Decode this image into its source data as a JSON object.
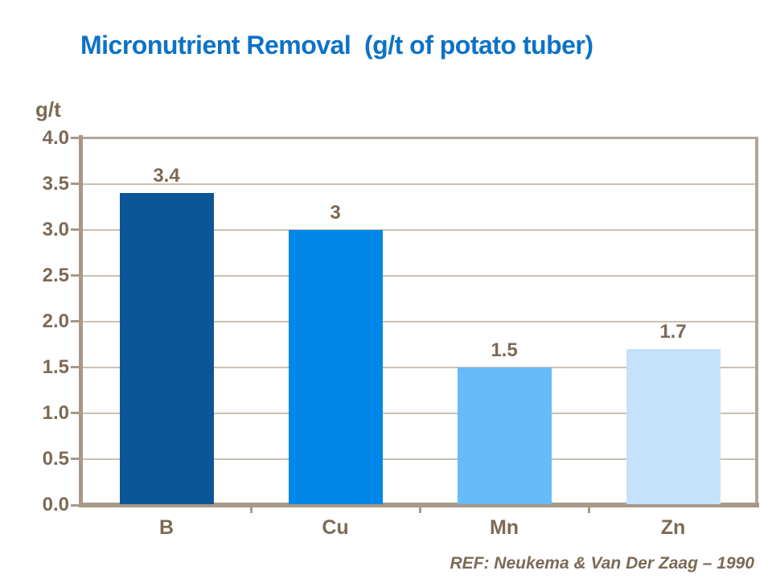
{
  "title": "Micronutrient Removal  (g/t of potato tuber)",
  "y_axis_unit": "g/t",
  "footer": {
    "ref": "REF: Neukema & Van Der Zaag – 1990"
  },
  "colors": {
    "title_blue": "#0E72C6",
    "label_brown": "#7C6A55",
    "axis_taupe": "#A79888",
    "gridline_taupe": "#CBC0B4",
    "background": "#FFFFFF"
  },
  "chart_data": {
    "type": "bar",
    "title": "Micronutrient Removal (g/t of potato tuber)",
    "ylabel": "g/t",
    "xlabel": "",
    "categories": [
      "B",
      "Cu",
      "Mn",
      "Zn"
    ],
    "values": [
      3.4,
      3,
      1.5,
      1.7
    ],
    "value_labels": [
      "3.4",
      "3",
      "1.5",
      "1.7"
    ],
    "bar_colors": [
      "#0B5697",
      "#0087E8",
      "#66BBF8",
      "#C6E2FA"
    ],
    "ylim": [
      0,
      4
    ],
    "y_tick_step": 0.5,
    "y_ticks": [
      "4.0",
      "3.5",
      "3.0",
      "2.5",
      "2.0",
      "1.5",
      "1.0",
      "0.5",
      "0.0"
    ],
    "grid": true,
    "legend": false
  }
}
